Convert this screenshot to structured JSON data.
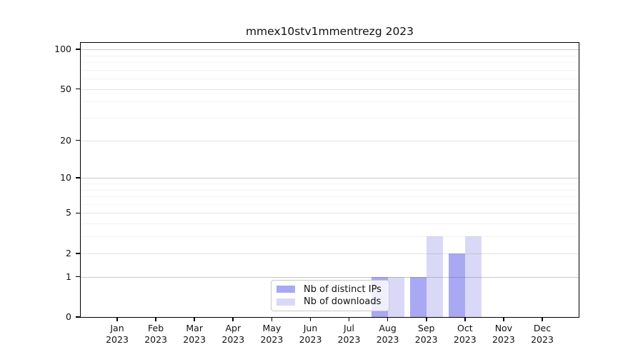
{
  "chart_data": {
    "type": "bar",
    "title": "mmex10stv1mmentrezg 2023",
    "categories": [
      {
        "month": "Jan",
        "year": "2023"
      },
      {
        "month": "Feb",
        "year": "2023"
      },
      {
        "month": "Mar",
        "year": "2023"
      },
      {
        "month": "Apr",
        "year": "2023"
      },
      {
        "month": "May",
        "year": "2023"
      },
      {
        "month": "Jun",
        "year": "2023"
      },
      {
        "month": "Jul",
        "year": "2023"
      },
      {
        "month": "Aug",
        "year": "2023"
      },
      {
        "month": "Sep",
        "year": "2023"
      },
      {
        "month": "Oct",
        "year": "2023"
      },
      {
        "month": "Nov",
        "year": "2023"
      },
      {
        "month": "Dec",
        "year": "2023"
      }
    ],
    "series": [
      {
        "name": "Nb of distinct IPs",
        "color": "#a8a8f3",
        "values": [
          0,
          0,
          0,
          0,
          0,
          0,
          0,
          1,
          1,
          2,
          0,
          0
        ]
      },
      {
        "name": "Nb of downloads",
        "color": "#d9d9f7",
        "values": [
          0,
          0,
          0,
          0,
          0,
          0,
          0,
          1,
          3,
          3,
          0,
          0
        ]
      }
    ],
    "yticks": [
      0,
      1,
      2,
      5,
      10,
      20,
      50,
      100
    ],
    "minor_yticks": [
      3,
      4,
      6,
      7,
      8,
      9,
      30,
      40,
      60,
      70,
      80,
      90
    ],
    "decade_yticks": [
      1,
      10,
      100
    ],
    "scale": "log1p",
    "ylim": [
      0,
      112
    ],
    "xlabel": "",
    "ylabel": "",
    "grid": "horizontal",
    "legend_position": "inside-bottom-center",
    "axis_color": "#000000",
    "background_color": "#ffffff"
  }
}
